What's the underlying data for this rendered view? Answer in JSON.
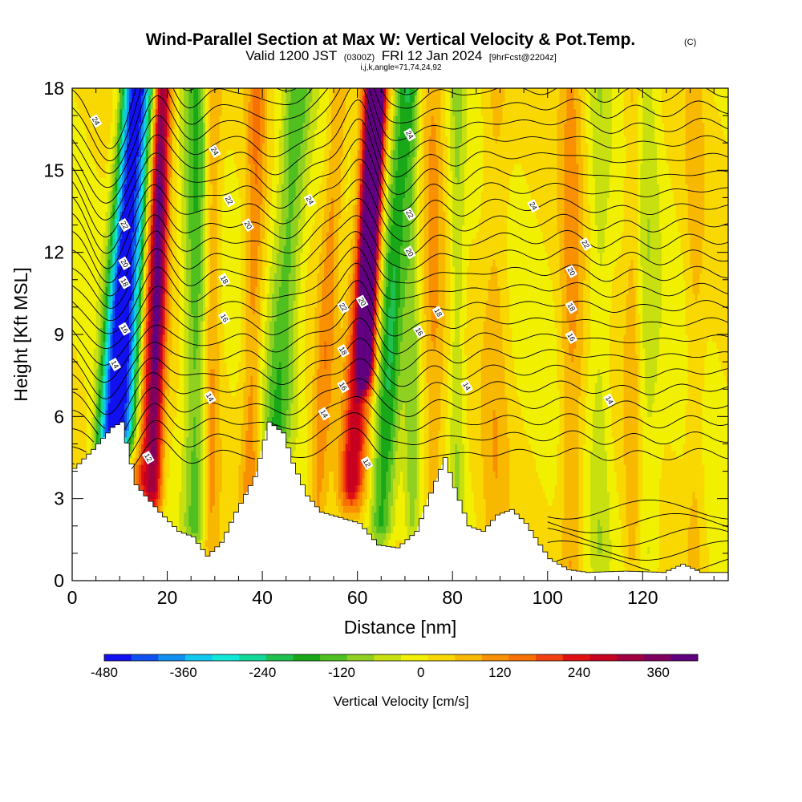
{
  "chart_data": {
    "type": "heatmap",
    "title": "Wind-Parallel Section at Max W: Vertical Velocity & Pot.Temp.",
    "title_mark": "(C)",
    "subtitle": {
      "valid": "Valid 1200 JST",
      "utc": "(0300Z)",
      "date": "FRI 12 Jan 2024",
      "forecast": "[9hrFcst@2204z]"
    },
    "indices": "i,j,k,angle=71,74,24,92",
    "xlabel": "Distance [nm]",
    "ylabel": "Height [Kft MSL]",
    "xlim": [
      0,
      138
    ],
    "ylim": [
      0,
      18
    ],
    "x_ticks": [
      "0",
      "20",
      "40",
      "60",
      "80",
      "100",
      "120"
    ],
    "y_ticks": [
      "0",
      "3",
      "6",
      "9",
      "12",
      "15",
      "18"
    ],
    "colorbar": {
      "label": "Vertical Velocity [cm/s]",
      "range": [
        -480,
        420
      ],
      "tick_labels": [
        "-480",
        "-360",
        "-240",
        "-120",
        "0",
        "120",
        "240",
        "360"
      ],
      "colors": [
        "#1010f0",
        "#1050f0",
        "#1090f0",
        "#10c8f0",
        "#10e8d8",
        "#10d898",
        "#20c050",
        "#18a818",
        "#50c020",
        "#90d020",
        "#c8e010",
        "#f0f000",
        "#f8d800",
        "#f8b800",
        "#f89000",
        "#f87000",
        "#f04010",
        "#e01010",
        "#c80020",
        "#a00040",
        "#800060",
        "#600080"
      ]
    },
    "terrain": [
      [
        0,
        4.1
      ],
      [
        4,
        4.8
      ],
      [
        8,
        5.6
      ],
      [
        10,
        5.8
      ],
      [
        13,
        3.5
      ],
      [
        15,
        3.1
      ],
      [
        18,
        2.5
      ],
      [
        22,
        1.8
      ],
      [
        25,
        1.6
      ],
      [
        28,
        0.9
      ],
      [
        31,
        1.4
      ],
      [
        34,
        2.5
      ],
      [
        38,
        3.8
      ],
      [
        41,
        5.8
      ],
      [
        44,
        5.4
      ],
      [
        46,
        4.3
      ],
      [
        49,
        3.1
      ],
      [
        52,
        2.5
      ],
      [
        56,
        2.3
      ],
      [
        60,
        2.1
      ],
      [
        64,
        1.3
      ],
      [
        68,
        1.2
      ],
      [
        72,
        1.8
      ],
      [
        75,
        3.2
      ],
      [
        78,
        4.5
      ],
      [
        80,
        3.4
      ],
      [
        83,
        2.0
      ],
      [
        86,
        1.8
      ],
      [
        89,
        2.4
      ],
      [
        92,
        2.6
      ],
      [
        95,
        2.1
      ],
      [
        98,
        1.3
      ],
      [
        100,
        0.8
      ],
      [
        104,
        0.4
      ],
      [
        108,
        0.3
      ],
      [
        116,
        0.35
      ],
      [
        124,
        0.3
      ],
      [
        128,
        0.6
      ],
      [
        132,
        0.3
      ],
      [
        138,
        0.3
      ]
    ],
    "velocity_bands": [
      {
        "center": 6.5,
        "tilt": 0.42,
        "width": 2.2,
        "value": -300,
        "y_from": 3.5
      },
      {
        "center": 10,
        "tilt": 0.38,
        "width": 3.0,
        "value": -420,
        "y_from": 5.5
      },
      {
        "center": 15.5,
        "tilt": 0.2,
        "width": 2.6,
        "value": 250,
        "y_from": 3.5
      },
      {
        "center": 17.5,
        "tilt": 0.1,
        "width": 1.6,
        "value": 190,
        "y_from": 3.0
      },
      {
        "center": 26,
        "tilt": 0.0,
        "width": 2.6,
        "value": -150,
        "y_from": 2.0
      },
      {
        "center": 29,
        "tilt": 0.05,
        "width": 1.8,
        "value": 100,
        "y_from": 1.5
      },
      {
        "center": 37.5,
        "tilt": 0.1,
        "width": 2.0,
        "value": 110,
        "y_from": 3.0
      },
      {
        "center": 42.5,
        "tilt": 0.35,
        "width": 3.2,
        "value": -150,
        "y_from": 5.5
      },
      {
        "center": 52,
        "tilt": 0.3,
        "width": 2.0,
        "value": 100,
        "y_from": 2.5
      },
      {
        "center": 59,
        "tilt": 0.35,
        "width": 2.6,
        "value": 260,
        "y_from": 3.5
      },
      {
        "center": 61,
        "tilt": 0.2,
        "width": 1.8,
        "value": 400,
        "y_from": 8.0
      },
      {
        "center": 65.5,
        "tilt": 0.3,
        "width": 2.6,
        "value": -190,
        "y_from": 2.0
      },
      {
        "center": 71.5,
        "tilt": 0.0,
        "width": 1.6,
        "value": -90,
        "y_from": 2.0
      },
      {
        "center": 76,
        "tilt": 0.0,
        "width": 2.2,
        "value": 80,
        "y_from": 2.5
      },
      {
        "center": 81,
        "tilt": 0.0,
        "width": 1.6,
        "value": -80,
        "y_from": 2.0
      },
      {
        "center": 89,
        "tilt": 0.0,
        "width": 2.8,
        "value": 60,
        "y_from": 2.0
      },
      {
        "center": 105,
        "tilt": 0.0,
        "width": 2.4,
        "value": 90,
        "y_from": 0.5
      },
      {
        "center": 111,
        "tilt": 0.0,
        "width": 2.2,
        "value": -60,
        "y_from": 1.0
      },
      {
        "center": 118,
        "tilt": 0.0,
        "width": 1.8,
        "value": 70,
        "y_from": 1.0
      },
      {
        "center": 121,
        "tilt": 0.0,
        "width": 2.6,
        "value": -60,
        "y_from": 1.0
      },
      {
        "center": 131,
        "tilt": 0.0,
        "width": 2.0,
        "value": 50,
        "y_from": 1.0
      }
    ],
    "theta_contours": [
      {
        "label": "12",
        "base": 4.2,
        "label_at": [
          [
            16,
            4.5
          ],
          [
            62,
            4.3
          ]
        ]
      },
      {
        "label": "14",
        "base": 6.2,
        "label_at": [
          [
            9,
            7.9
          ],
          [
            29,
            6.7
          ],
          [
            53,
            6.1
          ],
          [
            83,
            7.1
          ],
          [
            113,
            6.6
          ]
        ]
      },
      {
        "label": "16",
        "base": 8.0,
        "label_at": [
          [
            11,
            9.2
          ],
          [
            32,
            9.6
          ],
          [
            57,
            7.1
          ],
          [
            73,
            9.1
          ],
          [
            105,
            8.9
          ]
        ]
      },
      {
        "label": "18",
        "base": 9.6,
        "label_at": [
          [
            11,
            10.9
          ],
          [
            32,
            11.0
          ],
          [
            57,
            8.4
          ],
          [
            77,
            9.8
          ],
          [
            105,
            10.0
          ]
        ]
      },
      {
        "label": "20",
        "base": 10.8,
        "label_at": [
          [
            11,
            11.6
          ],
          [
            37,
            13.0
          ],
          [
            61,
            10.2
          ],
          [
            71,
            12.0
          ],
          [
            105,
            11.3
          ]
        ]
      },
      {
        "label": "22",
        "base": 11.8,
        "label_at": [
          [
            11,
            13.0
          ],
          [
            33,
            13.9
          ],
          [
            57,
            10.0
          ],
          [
            71,
            13.4
          ],
          [
            108,
            12.3
          ]
        ]
      },
      {
        "label": "24",
        "base": 13.4,
        "label_at": [
          [
            5,
            16.8
          ],
          [
            30,
            15.7
          ],
          [
            50,
            13.9
          ],
          [
            71,
            16.3
          ],
          [
            97,
            13.7
          ]
        ]
      }
    ]
  }
}
